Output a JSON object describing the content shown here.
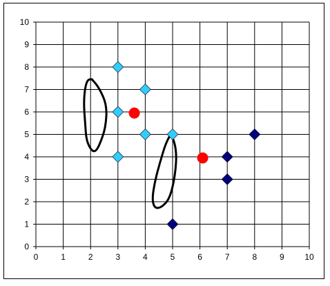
{
  "chart_data": {
    "type": "scatter",
    "title": "",
    "xlabel": "",
    "ylabel": "",
    "xlim": [
      0,
      10
    ],
    "ylim": [
      0,
      10
    ],
    "grid": true,
    "x_ticks": [
      "0",
      "1",
      "2",
      "3",
      "4",
      "5",
      "6",
      "7",
      "8",
      "9",
      "10"
    ],
    "y_ticks": [
      "0",
      "1",
      "2",
      "3",
      "4",
      "5",
      "6",
      "7",
      "8",
      "9",
      "10"
    ],
    "series": [
      {
        "marker": "diamond",
        "color": "#33ccff",
        "points": [
          [
            3,
            8
          ],
          [
            3,
            6
          ],
          [
            4,
            7
          ],
          [
            4,
            5
          ],
          [
            5,
            5
          ],
          [
            3,
            4
          ]
        ]
      },
      {
        "marker": "diamond",
        "color": "#000080",
        "points": [
          [
            7,
            4
          ],
          [
            7,
            3
          ],
          [
            8,
            5
          ],
          [
            5,
            1
          ]
        ]
      },
      {
        "marker": "circle",
        "color": "#ff0000",
        "points": [
          [
            3.6,
            5.95
          ],
          [
            6.1,
            3.95
          ]
        ]
      }
    ],
    "annotations": [
      {
        "shape": "hand-drawn loop",
        "color": "#000000",
        "points": [
          [
            2.05,
            7.45
          ],
          [
            2.3,
            7.1
          ],
          [
            2.6,
            6.3
          ],
          [
            2.55,
            5.3
          ],
          [
            2.35,
            4.6
          ],
          [
            2.2,
            4.25
          ],
          [
            2.05,
            4.25
          ],
          [
            1.85,
            4.7
          ],
          [
            1.8,
            5.5
          ],
          [
            1.75,
            6.4
          ],
          [
            1.8,
            7.1
          ],
          [
            1.9,
            7.45
          ],
          [
            2.05,
            7.45
          ]
        ]
      },
      {
        "shape": "hand-drawn loop",
        "color": "#000000",
        "points": [
          [
            4.95,
            5.05
          ],
          [
            5.15,
            4.3
          ],
          [
            5.1,
            3.2
          ],
          [
            4.9,
            2.15
          ],
          [
            4.6,
            1.75
          ],
          [
            4.35,
            1.7
          ],
          [
            4.25,
            2.1
          ],
          [
            4.35,
            2.9
          ],
          [
            4.55,
            3.8
          ],
          [
            4.75,
            4.6
          ],
          [
            4.95,
            5.05
          ]
        ]
      }
    ]
  }
}
